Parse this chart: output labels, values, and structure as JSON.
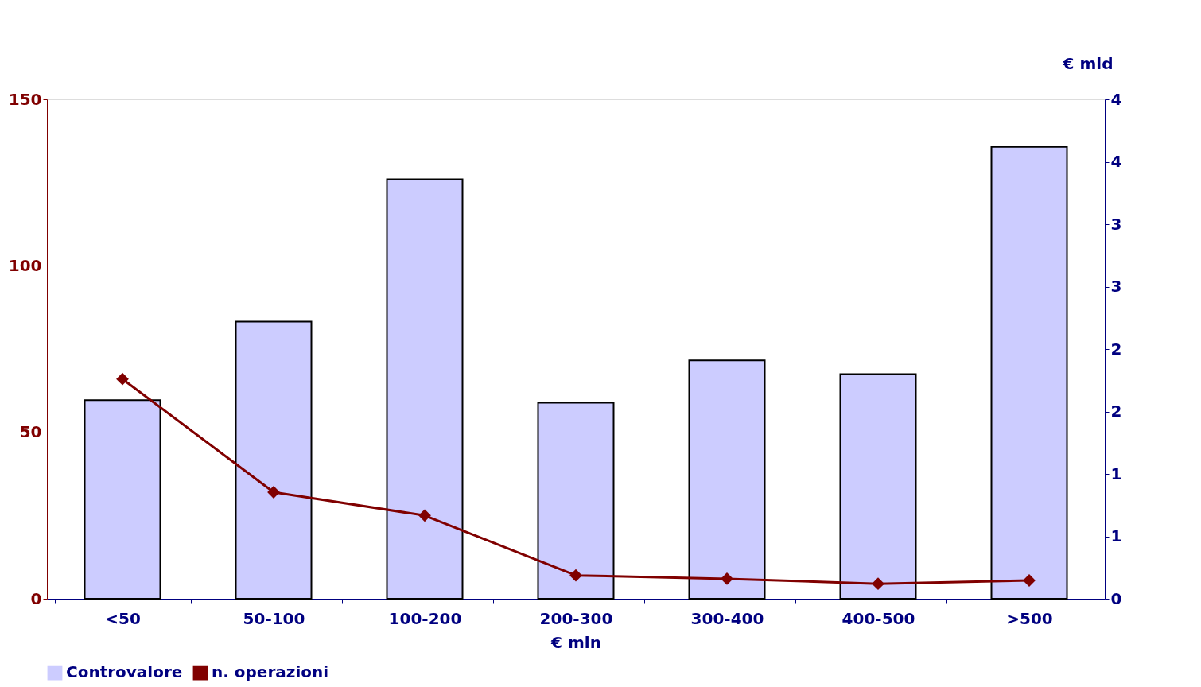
{
  "chart_data": {
    "type": "bar",
    "xlabel": "€ mln",
    "ylabel": null,
    "y2label": "€ mld",
    "categories": [
      "<50",
      "50-100",
      "100-200",
      "200-300",
      "300-400",
      "400-500",
      ">500"
    ],
    "series": [
      {
        "name": "Controvalore",
        "axis": "y2",
        "color": "#ccccff",
        "values": [
          1.59,
          2.22,
          3.36,
          1.57,
          1.91,
          1.8,
          3.62
        ]
      },
      {
        "name": "n. operazioni",
        "type": "line",
        "axis": "y",
        "color": "#800000",
        "marker": "diamond",
        "values": [
          66,
          32,
          25,
          7,
          6,
          4.5,
          5.5
        ]
      }
    ],
    "ylim": [
      0,
      150
    ],
    "yticks": [
      0,
      50,
      100,
      150
    ],
    "y2lim": [
      0,
      4
    ],
    "y2ticks": [
      0,
      {
        "value": 0.5,
        "label": "1"
      },
      1,
      {
        "value": 1.5,
        "label": "2"
      },
      2,
      {
        "value": 2.5,
        "label": "3"
      },
      3,
      {
        "value": 3.5,
        "label": "4"
      },
      4
    ],
    "legend": "bottom",
    "grid": false
  }
}
